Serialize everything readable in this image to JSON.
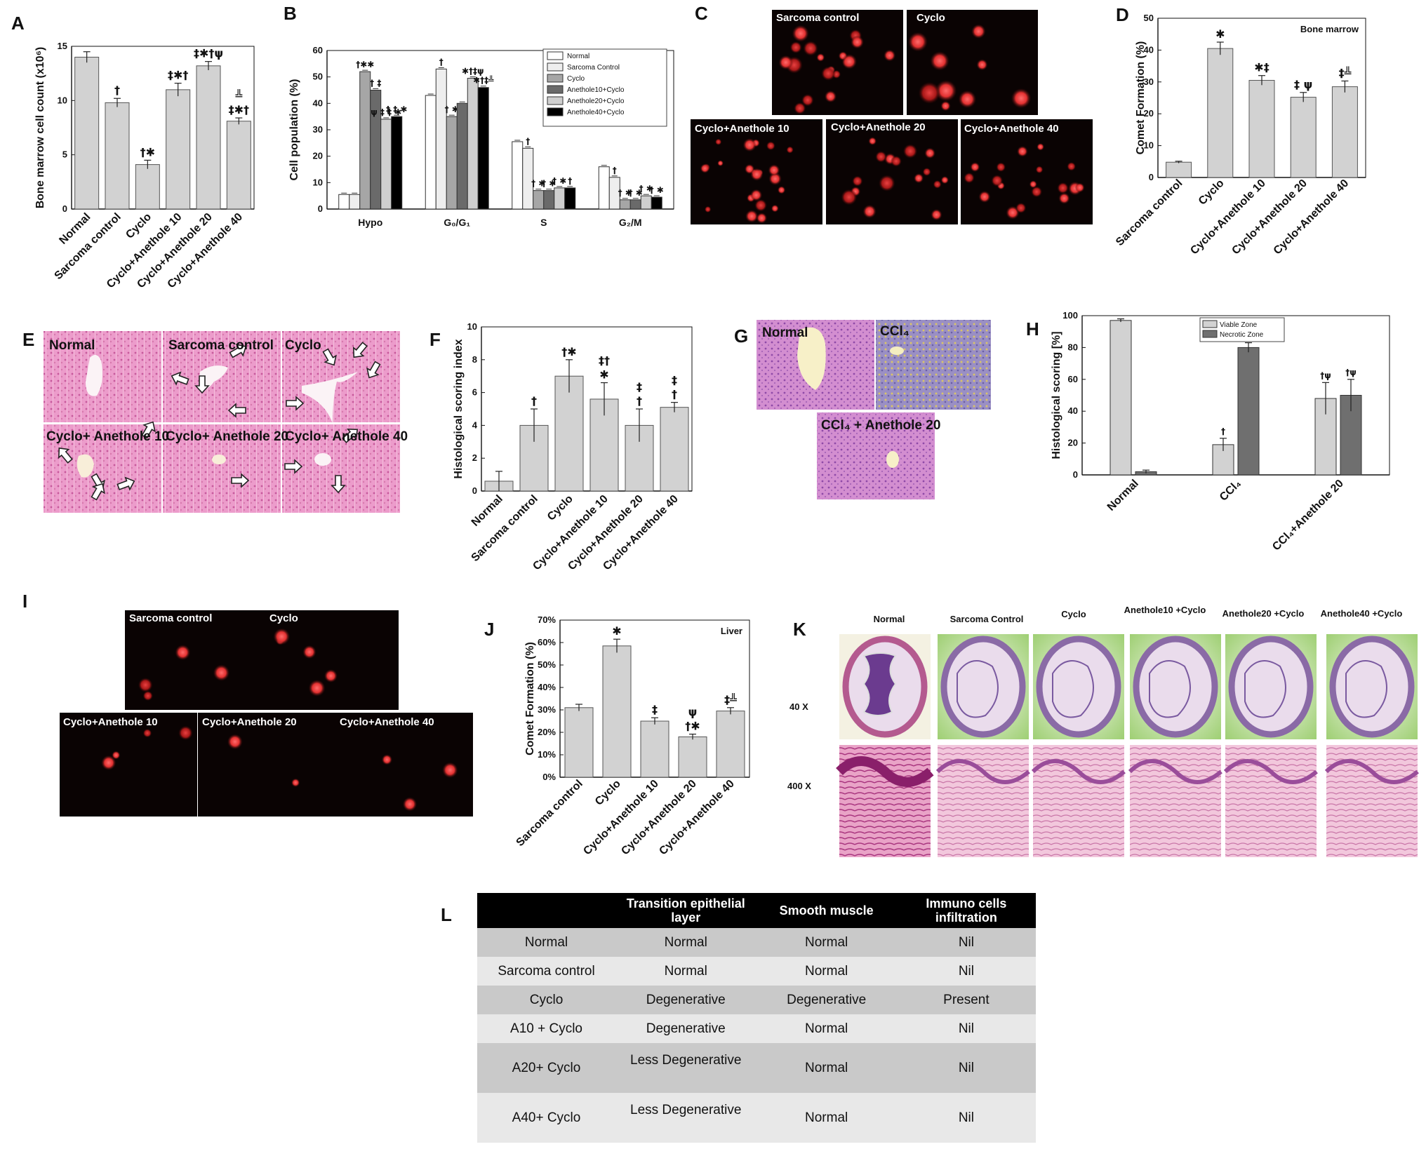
{
  "panel_labels": {
    "A": "A",
    "B": "B",
    "C": "C",
    "D": "D",
    "E": "E",
    "F": "F",
    "G": "G",
    "H": "H",
    "I": "I",
    "J": "J",
    "K": "K",
    "L": "L"
  },
  "chart_data": [
    {
      "id": "A",
      "type": "bar",
      "ylabel": "Bone marrow cell count (x10⁶)",
      "ylim": [
        0,
        15
      ],
      "yticks": [
        0,
        5,
        10,
        15
      ],
      "categories": [
        "Normal",
        "Sarcoma control",
        "Cyclo",
        "Cyclo+Anethole 10",
        "Cyclo+Anethole 20",
        "Cyclo+Anethole 40"
      ],
      "values": [
        14.0,
        9.8,
        4.1,
        11.0,
        13.2,
        8.1
      ],
      "errors": [
        0.5,
        0.4,
        0.4,
        0.6,
        0.4,
        0.3
      ],
      "markers": [
        "",
        "†",
        "†✱",
        "‡✱†",
        "‡✱†ψ",
        "‡✱†"
      ],
      "markers2": [
        "",
        "",
        "",
        "",
        "",
        "╩"
      ],
      "color": "#d2d2d2"
    },
    {
      "id": "B",
      "type": "bar",
      "ylabel": "Cell population (%)",
      "ylim": [
        0,
        60
      ],
      "yticks": [
        0,
        10,
        20,
        30,
        40,
        50,
        60
      ],
      "categories": [
        "Hypo",
        "G₀/G₁",
        "S",
        "G₂/M"
      ],
      "series": [
        {
          "name": "Normal",
          "values": [
            5.5,
            43.0,
            25.5,
            16.0
          ],
          "color": "#ffffff"
        },
        {
          "name": "Sarcoma Control",
          "values": [
            5.5,
            53.0,
            23.0,
            12.0
          ],
          "color": "#eeeeee"
        },
        {
          "name": "Cyclo",
          "values": [
            52.0,
            35.0,
            7.0,
            3.5
          ],
          "color": "#a6a6a6"
        },
        {
          "name": "Anethole10+Cyclo",
          "values": [
            45.0,
            40.0,
            7.0,
            3.5
          ],
          "color": "#6a6a6a"
        },
        {
          "name": "Anethole20+Cyclo",
          "values": [
            34.0,
            49.5,
            8.0,
            5.0
          ],
          "color": "#cfcfcf"
        },
        {
          "name": "Anethole40+Cyclo",
          "values": [
            35.0,
            46.0,
            8.0,
            4.5
          ],
          "color": "#000000"
        }
      ],
      "markers": [
        [
          "",
          "",
          "†✱✱",
          "† ‡",
          "ψ ‡ ‡ ✱",
          "‡ ‡ ✱"
        ],
        [
          "",
          "†",
          "† ✱",
          "",
          "✱†‡ψ",
          "✱†‡╩"
        ],
        [
          "",
          "†",
          "† ✱",
          "† ✱",
          "† ✱",
          "†"
        ],
        [
          "",
          "†",
          "† ✱",
          "† ✱",
          "† ✱",
          "† ✱"
        ]
      ]
    },
    {
      "id": "D",
      "type": "bar",
      "ylabel": "Comet Formation (%)",
      "inset": "Bone marrow",
      "ylim": [
        0,
        50
      ],
      "yticks": [
        0,
        10,
        20,
        30,
        40,
        50
      ],
      "categories": [
        "Sarcoma control",
        "Cyclo",
        "Cyclo+Anethole 10",
        "Cyclo+Anethole 20",
        "Cyclo+Anethole 40"
      ],
      "values": [
        4.8,
        40.5,
        30.5,
        25.2,
        28.5
      ],
      "errors": [
        0.3,
        2.0,
        1.5,
        1.5,
        1.8
      ],
      "markers": [
        "",
        "✱",
        "✱‡",
        "‡  ψ",
        "‡╩"
      ],
      "color": "#d2d2d2"
    },
    {
      "id": "F",
      "type": "bar",
      "ylabel": "Histological scoring index",
      "ylim": [
        0,
        10
      ],
      "yticks": [
        0,
        2,
        4,
        6,
        8,
        10
      ],
      "categories": [
        "Normal",
        "Sarcoma control",
        "Cyclo",
        "Cyclo+Anethole 10",
        "Cyclo+Anethole 20",
        "Cyclo+Anethole 40"
      ],
      "values": [
        0.6,
        4.0,
        7.0,
        5.6,
        4.0,
        5.1
      ],
      "errors": [
        0.6,
        1.0,
        1.0,
        1.0,
        1.0,
        0.3
      ],
      "markers": [
        "",
        "†",
        "†✱",
        "✱",
        "†",
        "†"
      ],
      "markers2": [
        "",
        "",
        "",
        "‡†",
        "‡",
        "‡"
      ],
      "color": "#d2d2d2"
    },
    {
      "id": "H",
      "type": "bar",
      "ylabel": "Histological scoring [%]",
      "ylim": [
        0,
        100
      ],
      "yticks": [
        0,
        20,
        40,
        60,
        80,
        100
      ],
      "categories": [
        "Normal",
        "CCl₄",
        "CCl₄+Anethole 20"
      ],
      "series": [
        {
          "name": "Viable Zone",
          "values": [
            97,
            19,
            48
          ],
          "errors": [
            1,
            4,
            10
          ],
          "color": "#d2d2d2"
        },
        {
          "name": "Necrotic Zone",
          "values": [
            2,
            80,
            50
          ],
          "errors": [
            1,
            3,
            10
          ],
          "color": "#6f6f6f"
        }
      ],
      "markers": [
        [
          "",
          ""
        ],
        [
          "†",
          "†"
        ],
        [
          "†ψ",
          "†ψ"
        ]
      ]
    },
    {
      "id": "J",
      "type": "bar",
      "ylabel": "Comet Formation (%)",
      "inset": "Liver",
      "ylim": [
        0,
        70
      ],
      "yticks": [
        0,
        10,
        20,
        30,
        40,
        50,
        60,
        70
      ],
      "ytick_labels": [
        "0%",
        "10%",
        "20%",
        "30%",
        "40%",
        "50%",
        "60%",
        "70%"
      ],
      "categories": [
        "Sarcoma control",
        "Cyclo",
        "Cyclo+Anethole 10",
        "Cyclo+Anethole 20",
        "Cyclo+Anethole 40"
      ],
      "values": [
        31,
        58.5,
        25,
        18,
        29.5
      ],
      "errors": [
        1.5,
        3.0,
        1.5,
        1.2,
        1.5
      ],
      "markers": [
        "",
        "✱",
        "‡",
        "†✱",
        "‡╩"
      ],
      "markers2": [
        "",
        "",
        "",
        "ψ",
        ""
      ],
      "color": "#d2d2d2"
    }
  ],
  "images": {
    "C": [
      "Sarcoma control",
      "Cyclo",
      "Cyclo+Anethole 10",
      "Cyclo+Anethole 20",
      "Cyclo+Anethole 40"
    ],
    "E": [
      "Normal",
      "Sarcoma control",
      "Cyclo",
      "Cyclo+ Anethole 10",
      "Cyclo+ Anethole 20",
      "Cyclo+ Anethole 40"
    ],
    "G": [
      "Normal",
      "CCl₄",
      "CCl₄ + Anethole 20"
    ],
    "I": [
      "Sarcoma control",
      "Cyclo",
      "Cyclo+Anethole 10",
      "Cyclo+Anethole 20",
      "Cyclo+Anethole 40"
    ],
    "K": {
      "columns": [
        "Normal",
        "Sarcoma Control",
        "Cyclo",
        "Anethole10 +Cyclo",
        "Anethole20 +Cyclo",
        "Anethole40 +Cyclo"
      ],
      "rows": [
        "40 X",
        "400 X"
      ]
    }
  },
  "tableL": {
    "headers": [
      "",
      "Transition epithelial layer",
      "Smooth muscle",
      "Immuno cells infiltration"
    ],
    "rows": [
      [
        "Normal",
        "Normal",
        "Normal",
        "Nil"
      ],
      [
        "Sarcoma control",
        "Normal",
        "Normal",
        "Nil"
      ],
      [
        "Cyclo",
        "Degenerative",
        "Degenerative",
        "Present"
      ],
      [
        "A10 + Cyclo",
        "Degenerative",
        "Normal",
        "Nil"
      ],
      [
        "A20+ Cyclo",
        "Less Degenerative",
        "Normal",
        "Nil"
      ],
      [
        "A40+  Cyclo",
        "Less Degenerative",
        "Normal",
        "Nil"
      ]
    ]
  },
  "colors": {
    "bar": "#d2d2d2",
    "fluorescence_bg": "#0a0303",
    "nucleus": "#e23030",
    "he_pink": "#e58bc0",
    "he_light": "#f1b9d8"
  }
}
